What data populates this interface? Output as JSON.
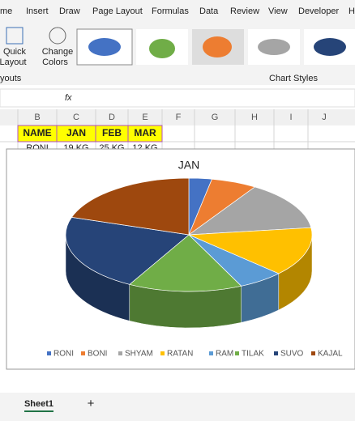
{
  "ribbon": {
    "tabs": [
      "me",
      "Insert",
      "Draw",
      "Page Layout",
      "Formulas",
      "Data",
      "Review",
      "View",
      "Developer",
      "H"
    ],
    "quick_layout": [
      "Quick",
      "Layout"
    ],
    "change_colors": [
      "Change",
      "Colors"
    ],
    "group_layouts": "youts",
    "group_chart_styles": "Chart Styles"
  },
  "formula_bar": {
    "fx": "fx"
  },
  "sheet": {
    "columns": [
      "B",
      "C",
      "D",
      "E",
      "F",
      "G",
      "H",
      "I",
      "J"
    ],
    "header": [
      "NAME",
      "JAN",
      "FEB",
      "MAR"
    ],
    "row": [
      "RONI",
      "19 KG",
      "25 KG",
      "12 KG"
    ]
  },
  "tabs": {
    "sheet": "Sheet1",
    "add": "+"
  },
  "chart_data": {
    "type": "pie",
    "three_d": true,
    "title": "JAN",
    "categories": [
      "RONI",
      "BONI",
      "SHYAM",
      "RATAN",
      "RAM",
      "TILAK",
      "SUVO",
      "KAJAL"
    ],
    "values": [
      3,
      6,
      14,
      14,
      6,
      15,
      22,
      20
    ],
    "colors": [
      "#4472c4",
      "#ed7d31",
      "#a5a5a5",
      "#ffc000",
      "#5b9bd5",
      "#70ad47",
      "#264478",
      "#9e480e"
    ],
    "legend": "bottom"
  }
}
